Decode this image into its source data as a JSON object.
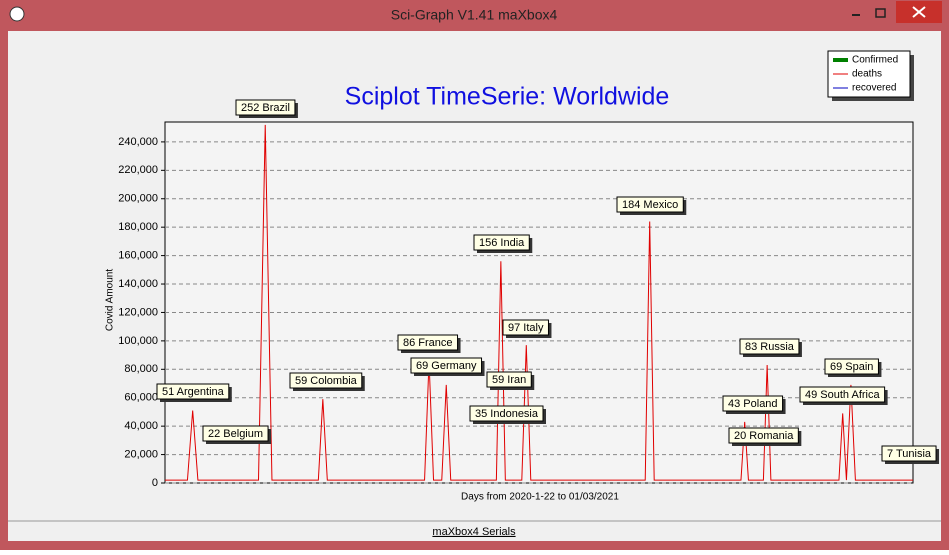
{
  "window": {
    "title": "Sci-Graph V1.41 maXbox4",
    "status": "maXbox4 Serials"
  },
  "chart_data": {
    "type": "line",
    "title": "Sciplot TimeSerie: Worldwide",
    "x_label": "Days from 2020-1-22 to 01/03/2021",
    "y_label": "Covid Amount",
    "ylim": [
      0,
      254000
    ],
    "yticks": [
      0,
      {
        "value": 20000,
        "label": "20,000"
      },
      {
        "value": 40000,
        "label": "40,000"
      },
      {
        "value": 60000,
        "label": "60,000"
      },
      {
        "value": 80000,
        "label": "80,000"
      },
      {
        "value": 100000,
        "label": "100,000"
      },
      {
        "value": 120000,
        "label": "120,000"
      },
      {
        "value": 140000,
        "label": "140,000"
      },
      {
        "value": 160000,
        "label": "160,000"
      },
      {
        "value": 180000,
        "label": "180,000"
      },
      {
        "value": 200000,
        "label": "200,000"
      },
      {
        "value": 220000,
        "label": "220,000"
      },
      {
        "value": 240000,
        "label": "240,000"
      }
    ],
    "grid": true,
    "legend_position": "top-right",
    "legend": [
      {
        "name": "Confirmed",
        "color": "#008000"
      },
      {
        "name": "deaths",
        "color": "#e00000"
      },
      {
        "name": "recovered",
        "color": "#0000c0"
      }
    ],
    "xlim": [
      0,
      100
    ],
    "x": [
      0,
      3,
      3.7,
      4.4,
      12.5,
      13.4,
      14.3,
      20.5,
      21.1,
      21.7,
      34.7,
      35.3,
      35.9,
      37.0,
      37.6,
      38.2,
      44.3,
      44.9,
      45.5,
      47.7,
      48.3,
      48.9,
      64.2,
      64.8,
      65.4,
      77,
      77.5,
      78,
      80,
      80.5,
      81,
      90.1,
      90.6,
      91.1,
      91.7,
      92.3,
      100
    ],
    "series": [
      {
        "name": "deaths",
        "color": "#e00000",
        "values": [
          2000,
          2000,
          51000,
          2000,
          2000,
          252000,
          2000,
          2000,
          59000,
          2000,
          2000,
          86000,
          2000,
          2000,
          69000,
          2000,
          2000,
          156000,
          2000,
          2000,
          97000,
          2000,
          2000,
          184000,
          2000,
          2000,
          43000,
          2000,
          2000,
          83000,
          2000,
          2000,
          49000,
          2000,
          69000,
          2000,
          2000
        ]
      }
    ],
    "annotations": [
      "51 Argentina",
      "252 Brazil",
      "59 Colombia",
      "86 France",
      "69 Germany",
      "156 India",
      "59 Iran",
      "97 Italy",
      "35 Indonesia",
      "184 Mexico",
      "43 Poland",
      "83 Russia",
      "20 Romania",
      "49 South Africa",
      "69 Spain",
      "22 Belgium",
      "7 Tunisia"
    ]
  }
}
